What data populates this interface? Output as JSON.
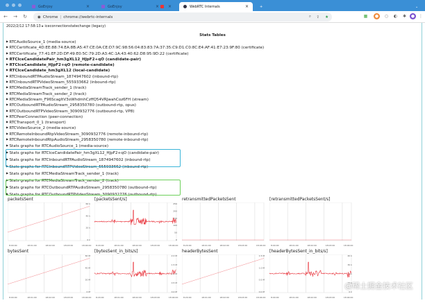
{
  "browser": {
    "tabs": [
      {
        "label": "GoEnjoy"
      },
      {
        "label": "GoEnjoy"
      },
      {
        "label": ""
      },
      {
        "label": "WebRTC Internals",
        "active": true
      }
    ],
    "new_tab": "+",
    "address": {
      "scheme_label": "Chrome",
      "separator": "|",
      "url": "chrome://webrtc-internals"
    }
  },
  "page": {
    "event_line": "2022/2/12 17:58:13  ▸ iceconnectionstatechange (legacy)",
    "stats_tables_title": "Stats Tables",
    "items": [
      {
        "label": "RTCAudioSource_1 (media-source)"
      },
      {
        "label": "RTCCertificate_4D:EE:88:74:EA:8B:A5:47:CE:0A:CE:D7:9C:98:56:04:83:83:7A:37:35:C9:D1:C0:8C:E4:AF:41:E7:23:9F:80 (certificate)"
      },
      {
        "label": "RTCCertificate_77:41:EF:2D:DF:49:E0:5C:79:2D:A3:4C:1A:43:40:62:D8:95:9D:22 (certificate)"
      },
      {
        "label": "RTCIceCandidatePair_hm3gXL12_HJpF2+qO (candidate-pair)",
        "bold": true
      },
      {
        "label": "RTCIceCandidate_HJpF2+qO (remote-candidate)",
        "bold": true
      },
      {
        "label": "RTCIceCandidate_hm3gXL12 (local-candidate)",
        "bold": true
      },
      {
        "label": "RTCInboundRTPAudioStream_1874947602 (inbound-rtp)"
      },
      {
        "label": "RTCInboundRTPVideoStream_555933662 (inbound-rtp)"
      },
      {
        "label": "RTCMediaStreamTrack_sender_1 (track)"
      },
      {
        "label": "RTCMediaStreamTrack_sender_2 (track)"
      },
      {
        "label": "RTCMediaStream_F96ScagltV3oWhdmhCzffQ54VRJwahCoz6FH (stream)"
      },
      {
        "label": "RTCOutboundRTPAudioStream_2958350780 (outbound-rtp, opus)"
      },
      {
        "label": "RTCOutboundRTPVideoStream_3090932776 (outbound-rtp, VP8)"
      },
      {
        "label": "RTCPeerConnection (peer-connection)"
      },
      {
        "label": "RTCTransport_0_1 (transport)"
      },
      {
        "label": "RTCVideoSource_2 (media-source)"
      },
      {
        "label": "RTCRemoteInboundRtpVideoStream_3090932776 (remote-inbound-rtp)"
      },
      {
        "label": "RTCRemoteInboundRtpAudioStream_2958350780 (remote-inbound-rtp)"
      }
    ],
    "graph_items": [
      {
        "label": "Stats graphs for RTCAudioSource_1 (media-source)"
      },
      {
        "label": "Stats graphs for RTCIceCandidatePair_hm3gXL12_HJpF2+qO (candidate-pair)"
      },
      {
        "label": "Stats graphs for RTCInboundRTPAudioStream_1874947602 (inbound-rtp)"
      },
      {
        "label": "Stats graphs for RTCInboundRTPVideoStream_555933662 (inbound-rtp)"
      },
      {
        "label": "Stats graphs for RTCMediaStreamTrack_sender_1 (track)"
      },
      {
        "label": "Stats graphs for RTCMediaStreamTrack_sender_2 (track)"
      },
      {
        "label": "Stats graphs for RTCOutboundRTPAudioStream_2958350780 (outbound-rtp)"
      },
      {
        "label": "Stats graphs for RTCOutboundRTPVideoStream_3090932776 (outbound-rtp)"
      }
    ],
    "highlight_colors": {
      "inbound": "#3ab4d8",
      "outbound": "#6cd05a"
    }
  },
  "charts": [
    {
      "title": "packetsSent",
      "kind": "rising",
      "yticks": [
        "60 k",
        "40 k",
        "20 k",
        "0 k"
      ],
      "xticks": [
        "8:00:00",
        "18:01:00",
        "18:02:00",
        "18:03:00",
        "18:04:00"
      ]
    },
    {
      "title": "[packetsSent/s]",
      "kind": "noise",
      "yticks": [
        "250",
        "200",
        "150",
        "100",
        "50",
        "0"
      ],
      "xticks": [
        "8:20:00",
        "18:01:00",
        "18:02:00",
        "18:03:00",
        "18:04:00"
      ]
    },
    {
      "title": "retransmittedPacketsSent",
      "kind": "flat",
      "yticks": [],
      "xticks": [
        "8:20:00",
        "18:01:00",
        "18:02:00",
        "18:03:00",
        "18:04:00"
      ]
    },
    {
      "title": "[retransmittedPacketsSent/s]",
      "kind": "flat",
      "yticks": [],
      "xticks": [
        "8:00:00",
        "18:01:00",
        "18:02:00",
        "18:03:00",
        "18:04:00"
      ]
    },
    {
      "title": "bytesSent",
      "kind": "rising",
      "yticks": [
        "60 M",
        "40 M",
        "20 M",
        "0 M"
      ],
      "xticks": [
        "8:00:00",
        "18:01:00",
        "18:02:00",
        "18:03:00",
        "18:04:00"
      ]
    },
    {
      "title": "[bytesSent_in_bits/s]",
      "kind": "noise",
      "yticks": [
        "2.0 M",
        "1.5 M",
        "1.0 M",
        "0.5 M",
        "0.0 M"
      ],
      "xticks": [
        "8:20:00",
        "18:01:00",
        "18:02:00",
        "18:03:00",
        "18:04:00"
      ]
    },
    {
      "title": "headerBytesSent",
      "kind": "rising",
      "yticks": [
        "1.5 M",
        "1.0 M",
        "0.5 M",
        "0.0 M"
      ],
      "xticks": [
        "8:20:00",
        "18:01:00",
        "18:02:00",
        "18:03:00",
        "18:04:00"
      ]
    },
    {
      "title": "[headerBytesSent_in_bits/s]",
      "kind": "noise",
      "yticks": [
        "40 k",
        "30 k",
        "20 k",
        "10 k",
        "0 k"
      ],
      "xticks": [
        "8:00:00",
        "18:01:00",
        "18:02:00",
        "18:03:00",
        "18:04:00"
      ]
    }
  ],
  "line_color": "#e8343c",
  "watermark": "@稀土掘金技术社区"
}
